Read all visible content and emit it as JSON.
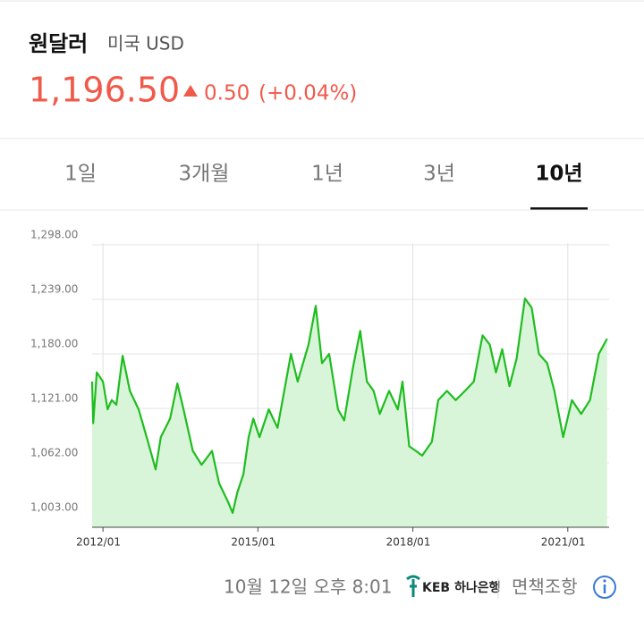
{
  "header": {
    "title": "원달러",
    "subtitle": "미국 USD",
    "price": "1,196.50",
    "change": "0.50",
    "change_pct": "(+0.04%)"
  },
  "tabs": [
    "1일",
    "3개월",
    "1년",
    "3년",
    "10년"
  ],
  "selected_tab": 4,
  "chart_data": {
    "type": "line",
    "color": "#1fbd1f",
    "fill": "#d9f5d9",
    "grid": true,
    "xlim": [
      2011.79,
      2021.8
    ],
    "xticks": [
      {
        "value": 2012,
        "label": "2012/01"
      },
      {
        "value": 2015,
        "label": "2015/01"
      },
      {
        "value": 2018,
        "label": "2018/01"
      },
      {
        "value": 2021,
        "label": "2021/01"
      }
    ],
    "ylim": [
      992.4,
      1309.6
    ],
    "yticks": [
      {
        "value": 1003,
        "label": "1,003.00"
      },
      {
        "value": 1062,
        "label": "1,062.00"
      },
      {
        "value": 1121,
        "label": "1,121.00"
      },
      {
        "value": 1180,
        "label": "1,180.00"
      },
      {
        "value": 1239,
        "label": "1,239.00"
      },
      {
        "value": 1298,
        "label": "1,298.00"
      }
    ],
    "x": [
      2011.79,
      2011.81,
      2011.88,
      2012.0,
      2012.09,
      2012.17,
      2012.26,
      2012.38,
      2012.52,
      2012.69,
      2012.87,
      2013.02,
      2013.12,
      2013.3,
      2013.44,
      2013.56,
      2013.74,
      2013.91,
      2014.11,
      2014.25,
      2014.42,
      2014.51,
      2014.6,
      2014.72,
      2014.82,
      2014.91,
      2015.03,
      2015.21,
      2015.38,
      2015.51,
      2015.64,
      2015.77,
      2015.98,
      2016.12,
      2016.24,
      2016.38,
      2016.55,
      2016.67,
      2016.84,
      2016.98,
      2017.11,
      2017.24,
      2017.36,
      2017.54,
      2017.71,
      2017.8,
      2017.93,
      2018.06,
      2018.18,
      2018.37,
      2018.49,
      2018.66,
      2018.83,
      2019.01,
      2019.18,
      2019.35,
      2019.49,
      2019.61,
      2019.73,
      2019.87,
      2020.01,
      2020.17,
      2020.3,
      2020.44,
      2020.6,
      2020.74,
      2020.91,
      2021.08,
      2021.26,
      2021.43,
      2021.6,
      2021.76
    ],
    "values": [
      1150,
      1105,
      1160,
      1150,
      1120,
      1130,
      1125,
      1178,
      1140,
      1120,
      1085,
      1055,
      1090,
      1110,
      1148,
      1120,
      1075,
      1060,
      1075,
      1040,
      1020,
      1008,
      1030,
      1050,
      1090,
      1110,
      1090,
      1120,
      1100,
      1140,
      1180,
      1150,
      1190,
      1232,
      1170,
      1180,
      1120,
      1108,
      1165,
      1205,
      1150,
      1140,
      1115,
      1140,
      1120,
      1150,
      1080,
      1075,
      1070,
      1085,
      1130,
      1140,
      1130,
      1140,
      1150,
      1200,
      1190,
      1160,
      1185,
      1145,
      1175,
      1240,
      1230,
      1180,
      1170,
      1140,
      1090,
      1130,
      1115,
      1130,
      1180,
      1196.5
    ]
  },
  "footer": {
    "timestamp": "10월 12일 오후 8:01",
    "bank": "KEB 하나은행",
    "disclaimer": "면책조항"
  }
}
